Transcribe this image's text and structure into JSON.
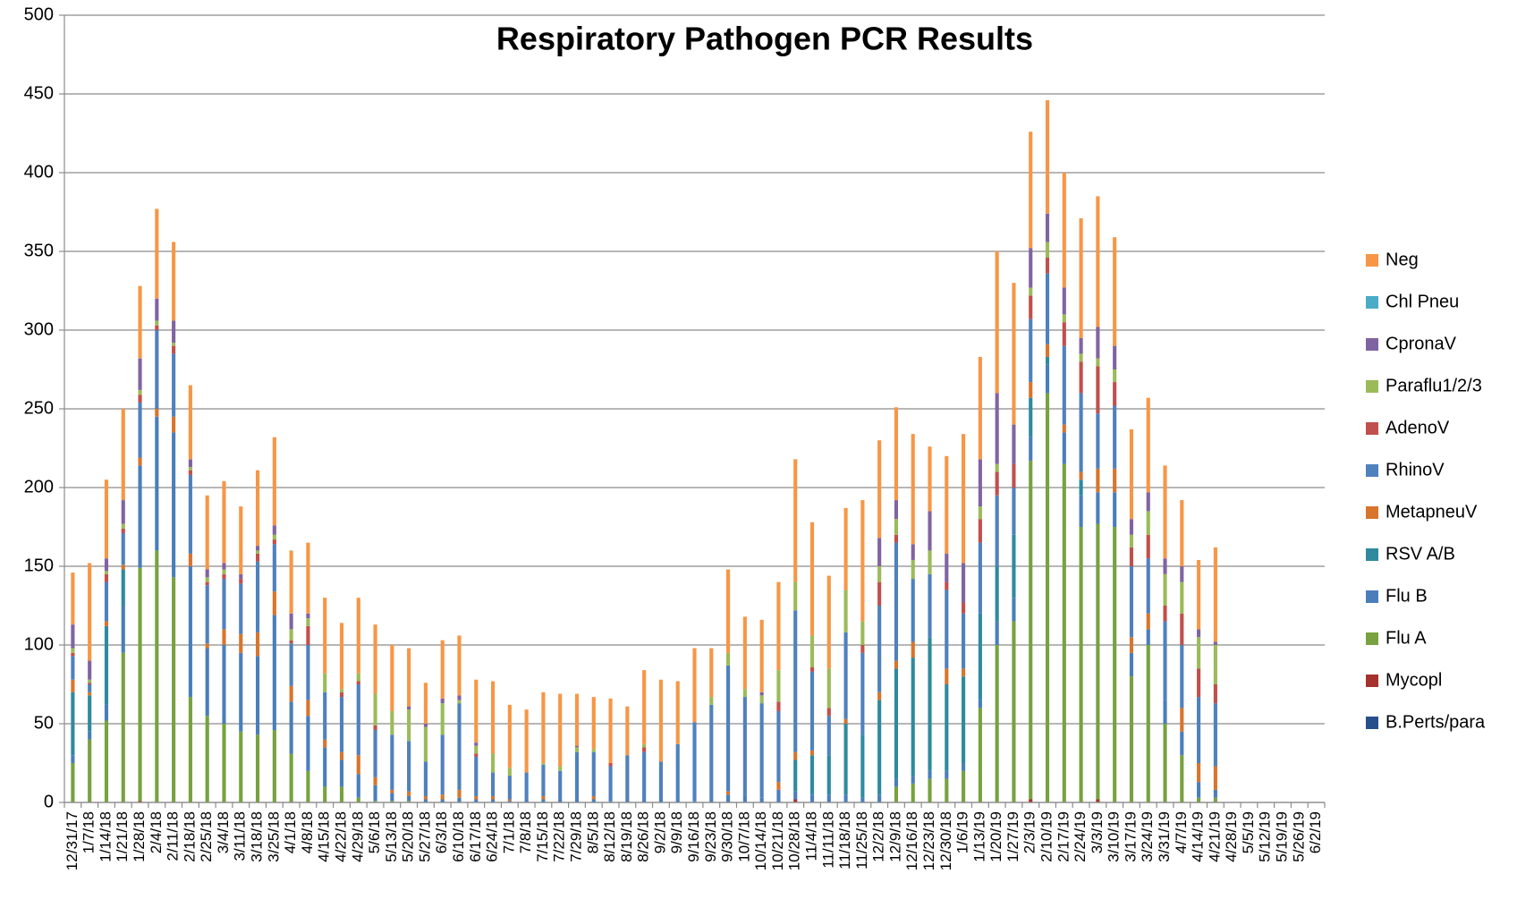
{
  "chart_data": {
    "type": "stacked_bar",
    "title": "Respiratory Pathogen PCR Results",
    "categories": [
      "12/31/17",
      "1/7/18",
      "1/14/18",
      "1/21/18",
      "1/28/18",
      "2/4/18",
      "2/11/18",
      "2/18/18",
      "2/25/18",
      "3/4/18",
      "3/11/18",
      "3/18/18",
      "3/25/18",
      "4/1/18",
      "4/8/18",
      "4/15/18",
      "4/22/18",
      "4/29/18",
      "5/6/18",
      "5/13/18",
      "5/20/18",
      "5/27/18",
      "6/3/18",
      "6/10/18",
      "6/17/18",
      "6/24/18",
      "7/1/18",
      "7/8/18",
      "7/15/18",
      "7/22/18",
      "7/29/18",
      "8/5/18",
      "8/12/18",
      "8/19/18",
      "8/26/18",
      "9/2/18",
      "9/9/18",
      "9/16/18",
      "9/23/18",
      "9/30/18",
      "10/7/18",
      "10/14/18",
      "10/21/18",
      "10/28/18",
      "11/4/18",
      "11/11/18",
      "11/18/18",
      "11/25/18",
      "12/2/18",
      "12/9/18",
      "12/16/18",
      "12/23/18",
      "12/30/18",
      "1/6/19",
      "1/13/19",
      "1/20/19",
      "1/27/19",
      "2/3/19",
      "2/10/19",
      "2/17/19",
      "2/24/19",
      "3/3/19",
      "3/10/19",
      "3/17/19",
      "3/24/19",
      "3/31/19",
      "4/7/19",
      "4/14/19",
      "4/21/19",
      "4/28/19",
      "5/5/19",
      "5/12/19",
      "5/19/19",
      "5/26/19",
      "6/2/19"
    ],
    "series": [
      {
        "name": "B.Perts/para",
        "color": "#264f8c",
        "values": [
          0,
          0,
          0,
          0,
          0,
          0,
          0,
          0,
          0,
          0,
          0,
          0,
          0,
          0,
          0,
          0,
          0,
          0,
          0,
          0,
          0,
          0,
          0,
          0,
          0,
          0,
          0,
          0,
          0,
          0,
          0,
          0,
          0,
          0,
          0,
          0,
          0,
          0,
          0,
          0,
          0,
          0,
          0,
          0,
          0,
          0,
          0,
          0,
          0,
          0,
          0,
          0,
          0,
          0,
          0,
          0,
          0,
          0,
          0,
          0,
          0,
          0,
          0,
          0,
          0,
          0,
          0,
          0,
          0,
          null,
          null,
          null,
          null,
          null,
          null
        ]
      },
      {
        "name": "Mycopl",
        "color": "#a6322d",
        "values": [
          0,
          0,
          0,
          0,
          1,
          0,
          0,
          0,
          0,
          0,
          0,
          0,
          0,
          0,
          0,
          0,
          0,
          0,
          0,
          0,
          0,
          0,
          0,
          0,
          0,
          0,
          0,
          0,
          0,
          0,
          0,
          0,
          0,
          0,
          0,
          0,
          0,
          0,
          0,
          0,
          0,
          0,
          0,
          2,
          0,
          0,
          0,
          0,
          0,
          0,
          0,
          0,
          0,
          0,
          0,
          0,
          0,
          2,
          0,
          0,
          0,
          2,
          0,
          0,
          0,
          0,
          0,
          0,
          0,
          null,
          null,
          null,
          null,
          null,
          null
        ]
      },
      {
        "name": "Flu A",
        "color": "#77a23f",
        "values": [
          25,
          40,
          52,
          95,
          148,
          160,
          143,
          67,
          55,
          50,
          45,
          43,
          46,
          31,
          20,
          10,
          10,
          3,
          1,
          1,
          1,
          0,
          0,
          0,
          0,
          0,
          0,
          0,
          0,
          0,
          0,
          0,
          0,
          0,
          0,
          0,
          0,
          0,
          0,
          0,
          0,
          0,
          0,
          0,
          0,
          0,
          0,
          0,
          0,
          10,
          12,
          15,
          15,
          20,
          60,
          100,
          115,
          215,
          260,
          215,
          175,
          175,
          175,
          80,
          100,
          50,
          30,
          3,
          3,
          null,
          null,
          null,
          null,
          null,
          null
        ]
      },
      {
        "name": "Flu B",
        "color": "#4a7ebb",
        "values": [
          5,
          5,
          10,
          30,
          65,
          85,
          92,
          83,
          43,
          50,
          50,
          50,
          73,
          33,
          35,
          25,
          17,
          15,
          10,
          5,
          3,
          2,
          2,
          3,
          2,
          2,
          1,
          2,
          2,
          2,
          2,
          2,
          1,
          2,
          2,
          2,
          2,
          1,
          2,
          5,
          5,
          3,
          8,
          5,
          5,
          5,
          5,
          3,
          5,
          5,
          5,
          5,
          5,
          5,
          5,
          15,
          15,
          15,
          18,
          20,
          20,
          20,
          22,
          15,
          10,
          15,
          15,
          10,
          5,
          null,
          null,
          null,
          null,
          null,
          null
        ]
      },
      {
        "name": "RSV A/B",
        "color": "#2f8a9e",
        "values": [
          40,
          23,
          50,
          23,
          0,
          0,
          0,
          0,
          0,
          0,
          0,
          0,
          0,
          0,
          0,
          0,
          0,
          0,
          0,
          0,
          0,
          0,
          0,
          0,
          0,
          0,
          0,
          0,
          0,
          0,
          0,
          0,
          0,
          0,
          0,
          0,
          0,
          0,
          0,
          0,
          0,
          0,
          0,
          20,
          25,
          25,
          45,
          40,
          60,
          70,
          75,
          85,
          55,
          55,
          55,
          35,
          40,
          25,
          5,
          0,
          10,
          0,
          0,
          0,
          0,
          0,
          0,
          0,
          0,
          null,
          null,
          null,
          null,
          null,
          null
        ]
      },
      {
        "name": "MetapneuV",
        "color": "#d8752c",
        "values": [
          8,
          2,
          3,
          3,
          5,
          5,
          10,
          8,
          3,
          10,
          12,
          15,
          15,
          10,
          10,
          5,
          5,
          12,
          5,
          2,
          3,
          2,
          3,
          5,
          2,
          2,
          1,
          0,
          2,
          0,
          0,
          2,
          0,
          0,
          0,
          0,
          0,
          0,
          0,
          2,
          0,
          0,
          5,
          5,
          3,
          0,
          3,
          0,
          5,
          5,
          10,
          0,
          10,
          5,
          0,
          0,
          0,
          10,
          8,
          5,
          5,
          15,
          15,
          10,
          10,
          0,
          15,
          12,
          15,
          null,
          null,
          null,
          null,
          null,
          null
        ]
      },
      {
        "name": "RhinoV",
        "color": "#4f81bd",
        "values": [
          15,
          5,
          25,
          20,
          35,
          50,
          40,
          50,
          37,
          32,
          32,
          45,
          30,
          27,
          35,
          30,
          35,
          45,
          30,
          35,
          32,
          22,
          38,
          55,
          25,
          15,
          15,
          17,
          20,
          18,
          30,
          28,
          22,
          28,
          30,
          24,
          35,
          50,
          60,
          80,
          62,
          60,
          45,
          90,
          50,
          25,
          55,
          52,
          55,
          75,
          40,
          40,
          50,
          35,
          45,
          45,
          30,
          40,
          45,
          50,
          50,
          35,
          40,
          45,
          35,
          50,
          40,
          42,
          40,
          null,
          null,
          null,
          null,
          null,
          null
        ]
      },
      {
        "name": "AdenoV",
        "color": "#c0504d",
        "values": [
          2,
          1,
          5,
          3,
          5,
          3,
          5,
          3,
          2,
          3,
          3,
          5,
          3,
          2,
          12,
          0,
          3,
          2,
          3,
          0,
          0,
          0,
          0,
          0,
          2,
          0,
          0,
          0,
          0,
          0,
          0,
          0,
          2,
          0,
          3,
          0,
          0,
          0,
          0,
          0,
          0,
          0,
          6,
          0,
          3,
          5,
          0,
          5,
          15,
          5,
          0,
          0,
          5,
          7,
          15,
          15,
          15,
          15,
          10,
          15,
          20,
          30,
          15,
          12,
          15,
          10,
          20,
          18,
          12,
          null,
          null,
          null,
          null,
          null,
          null
        ]
      },
      {
        "name": "Paraflu1/2/3",
        "color": "#9bbb59",
        "values": [
          3,
          2,
          2,
          3,
          3,
          3,
          2,
          2,
          3,
          3,
          0,
          2,
          3,
          7,
          5,
          12,
          2,
          5,
          20,
          15,
          20,
          22,
          20,
          2,
          5,
          12,
          5,
          0,
          1,
          3,
          3,
          2,
          0,
          0,
          2,
          0,
          0,
          0,
          5,
          8,
          5,
          5,
          20,
          18,
          20,
          25,
          27,
          15,
          10,
          10,
          12,
          15,
          0,
          0,
          8,
          5,
          0,
          5,
          10,
          5,
          5,
          5,
          8,
          8,
          15,
          20,
          20,
          20,
          25,
          null,
          null,
          null,
          null,
          null,
          null
        ]
      },
      {
        "name": "CpronaV",
        "color": "#8064a2",
        "values": [
          15,
          12,
          8,
          15,
          20,
          14,
          14,
          5,
          5,
          4,
          3,
          3,
          6,
          10,
          3,
          0,
          0,
          0,
          0,
          0,
          2,
          2,
          3,
          3,
          2,
          0,
          0,
          0,
          0,
          0,
          1,
          0,
          0,
          0,
          0,
          0,
          0,
          0,
          0,
          0,
          0,
          2,
          0,
          0,
          0,
          0,
          0,
          0,
          18,
          12,
          10,
          25,
          18,
          25,
          30,
          45,
          25,
          25,
          18,
          17,
          10,
          20,
          15,
          10,
          12,
          10,
          10,
          5,
          2,
          null,
          null,
          null,
          null,
          null,
          null
        ]
      },
      {
        "name": "Chl Pneu",
        "color": "#4bacc6",
        "values": [
          0,
          0,
          0,
          0,
          0,
          0,
          0,
          0,
          0,
          0,
          0,
          0,
          0,
          0,
          0,
          0,
          0,
          0,
          0,
          0,
          0,
          0,
          0,
          0,
          0,
          0,
          0,
          0,
          0,
          0,
          0,
          0,
          0,
          0,
          0,
          0,
          0,
          0,
          0,
          0,
          0,
          0,
          0,
          0,
          0,
          0,
          0,
          0,
          0,
          0,
          0,
          0,
          0,
          0,
          0,
          0,
          0,
          0,
          0,
          0,
          0,
          0,
          0,
          0,
          0,
          0,
          0,
          0,
          0,
          null,
          null,
          null,
          null,
          null,
          null
        ]
      },
      {
        "name": "Neg",
        "color": "#f79646",
        "values": [
          33,
          62,
          50,
          58,
          46,
          57,
          50,
          47,
          47,
          52,
          43,
          48,
          56,
          40,
          45,
          48,
          42,
          48,
          44,
          42,
          37,
          26,
          37,
          38,
          40,
          46,
          40,
          40,
          45,
          46,
          33,
          33,
          41,
          31,
          47,
          52,
          40,
          47,
          31,
          53,
          46,
          46,
          56,
          78,
          72,
          59,
          52,
          77,
          62,
          59,
          70,
          41,
          62,
          82,
          65,
          90,
          90,
          74,
          72,
          73,
          76,
          83,
          69,
          57,
          60,
          59,
          42,
          44,
          60,
          null,
          null,
          null,
          null,
          null,
          null
        ]
      }
    ],
    "ylim": [
      0,
      500
    ],
    "yticks": [
      0,
      50,
      100,
      150,
      200,
      250,
      300,
      350,
      400,
      450,
      500
    ],
    "grid": true,
    "legend": "right"
  }
}
